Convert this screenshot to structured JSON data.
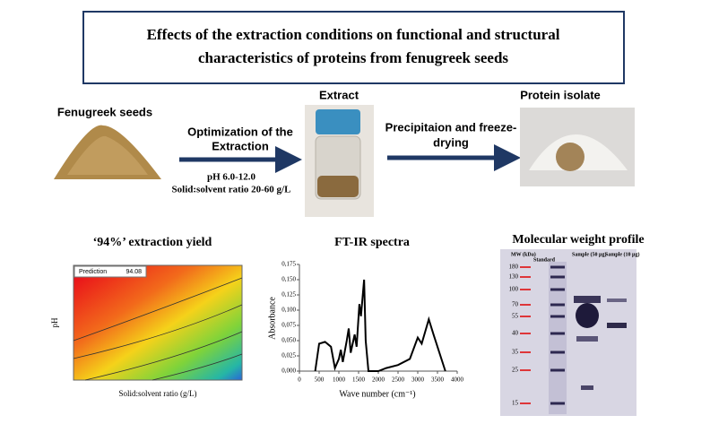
{
  "title": [
    "Effects of the extraction conditions on functional and structural",
    "characteristics of proteins from fenugreek seeds"
  ],
  "steps": {
    "seeds": "Fenugreek seeds",
    "optimization": [
      "Optimization of the",
      "Extraction"
    ],
    "conditions": [
      "pH 6.0-12.0",
      "Solid:solvent ratio 20-60 g/L"
    ],
    "extract": "Extract",
    "precipitation": [
      "Precipitaion and freeze-",
      "drying"
    ],
    "isolate": "Protein isolate"
  },
  "yield_plot": {
    "title": "‘94%’ extraction yield",
    "prediction_label": "Prediction",
    "prediction_value": "94.08",
    "ylabel": "pH",
    "xlabel": "Solid:solvent ratio (g/L)"
  },
  "ftir": {
    "type": "line",
    "title": "FT-IR spectra",
    "ylabel": "Absorbance",
    "xlabel": "Wave number (cm⁻¹)",
    "x": [
      400,
      500,
      650,
      800,
      900,
      1000,
      1050,
      1100,
      1200,
      1250,
      1300,
      1400,
      1450,
      1520,
      1560,
      1600,
      1640,
      1680,
      1750,
      2000,
      2200,
      2500,
      2800,
      3000,
      3100,
      3280,
      3400,
      3700
    ],
    "values": [
      0,
      0.045,
      0.048,
      0.04,
      0.005,
      0.02,
      0.035,
      0.015,
      0.05,
      0.07,
      0.03,
      0.06,
      0.04,
      0.11,
      0.09,
      0.12,
      0.15,
      0.05,
      0,
      0,
      0.005,
      0.01,
      0.02,
      0.055,
      0.045,
      0.085,
      0.06,
      0
    ],
    "xlim": [
      0,
      4000
    ],
    "ylim": [
      0,
      0.175
    ],
    "xticks": [
      0,
      500,
      1000,
      1500,
      2000,
      2500,
      3000,
      3500,
      4000
    ],
    "yticks": [
      {
        "value": 0,
        "label": "0,000"
      },
      {
        "value": 0.025,
        "label": "0,025"
      },
      {
        "value": 0.05,
        "label": "0,050"
      },
      {
        "value": 0.075,
        "label": "0,075"
      },
      {
        "value": 0.1,
        "label": "0,100"
      },
      {
        "value": 0.125,
        "label": "0,125"
      },
      {
        "value": 0.15,
        "label": "0,150"
      },
      {
        "value": 0.175,
        "label": "0,175"
      }
    ],
    "color": "#000000"
  },
  "gel": {
    "title": "Molecular weight profile",
    "mw_label": "MW (kDa)",
    "lanes": [
      "Standard",
      "Sample (50 µg)",
      "Sample (10 µg)"
    ],
    "markers": [
      "180",
      "130",
      "100",
      "70",
      "55",
      "40",
      "35",
      "25",
      "15"
    ]
  }
}
